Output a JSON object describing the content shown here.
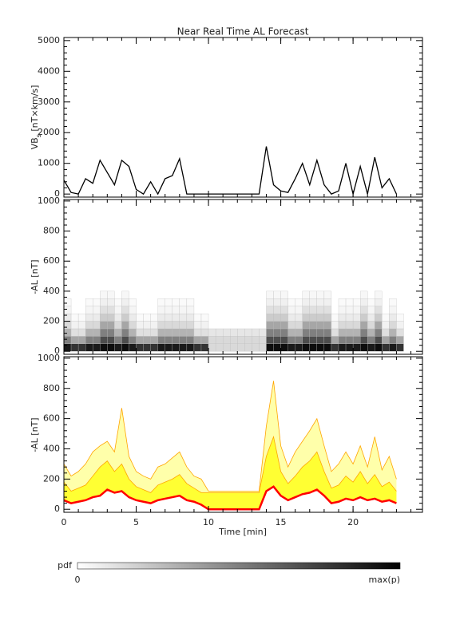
{
  "chart_data": [
    {
      "type": "line",
      "title": "Near Real Time AL Forecast",
      "ylabel": "VB",
      "ylabel_sub": "s",
      "ylabel_unit": " [nT×km/s]",
      "x": [
        0,
        0.5,
        1,
        1.5,
        2,
        2.5,
        3,
        3.5,
        4,
        4.5,
        5,
        5.5,
        6,
        6.5,
        7,
        7.5,
        8,
        8.5,
        9,
        9.5,
        10,
        10.5,
        11,
        11.5,
        12,
        12.5,
        13,
        13.5,
        14,
        14.5,
        15,
        15.5,
        16,
        16.5,
        17,
        17.5,
        18,
        18.5,
        19,
        19.5,
        20,
        20.5,
        21,
        21.5,
        22,
        22.5,
        23
      ],
      "values": [
        450,
        50,
        0,
        500,
        350,
        1100,
        700,
        300,
        1100,
        900,
        150,
        0,
        400,
        0,
        500,
        600,
        1150,
        0,
        0,
        0,
        0,
        0,
        0,
        0,
        0,
        0,
        0,
        0,
        1550,
        300,
        100,
        50,
        500,
        1000,
        300,
        1100,
        300,
        0,
        100,
        1000,
        0,
        900,
        0,
        1200,
        200,
        500,
        0
      ],
      "color": "#000000",
      "xlim": [
        0,
        24.8
      ],
      "xticks": [
        0,
        5,
        10,
        15,
        20
      ],
      "ylim": [
        -100,
        5100
      ],
      "yticks": [
        0,
        1000,
        2000,
        3000,
        4000,
        5000
      ]
    },
    {
      "type": "heatmap",
      "ylabel": "-AL [nT]",
      "x": [
        0,
        0.5,
        1,
        1.5,
        2,
        2.5,
        3,
        3.5,
        4,
        4.5,
        5,
        5.5,
        6,
        6.5,
        7,
        7.5,
        8,
        8.5,
        9,
        9.5,
        10,
        10.5,
        11,
        11.5,
        12,
        12.5,
        13,
        13.5,
        14,
        14.5,
        15,
        15.5,
        16,
        16.5,
        17,
        17.5,
        18,
        18.5,
        19,
        19.5,
        20,
        20.5,
        21,
        21.5,
        22,
        22.5,
        23
      ],
      "bins": [
        0,
        50,
        100,
        150,
        200,
        250,
        300,
        350,
        400
      ],
      "pdf": [
        [
          0.9,
          0.5,
          0.3,
          0.15,
          0.08,
          0.04,
          0.02,
          0
        ],
        [
          0.8,
          0.35,
          0.12,
          0.05,
          0.02,
          0,
          0,
          0
        ],
        [
          0.8,
          0.35,
          0.12,
          0.05,
          0.02,
          0,
          0,
          0
        ],
        [
          0.9,
          0.5,
          0.3,
          0.15,
          0.08,
          0.04,
          0.02,
          0
        ],
        [
          0.9,
          0.5,
          0.3,
          0.15,
          0.08,
          0.04,
          0.02,
          0
        ],
        [
          0.95,
          0.7,
          0.5,
          0.35,
          0.2,
          0.12,
          0.06,
          0.03
        ],
        [
          0.95,
          0.7,
          0.5,
          0.35,
          0.2,
          0.12,
          0.06,
          0.03
        ],
        [
          0.9,
          0.5,
          0.3,
          0.15,
          0.08,
          0.04,
          0.02,
          0
        ],
        [
          0.95,
          0.7,
          0.5,
          0.35,
          0.2,
          0.12,
          0.06,
          0.03
        ],
        [
          0.9,
          0.5,
          0.3,
          0.15,
          0.08,
          0.04,
          0.02,
          0
        ],
        [
          0.8,
          0.35,
          0.12,
          0.05,
          0.02,
          0,
          0,
          0
        ],
        [
          0.8,
          0.35,
          0.12,
          0.05,
          0.02,
          0,
          0,
          0
        ],
        [
          0.8,
          0.35,
          0.12,
          0.05,
          0.02,
          0,
          0,
          0
        ],
        [
          0.9,
          0.5,
          0.3,
          0.15,
          0.08,
          0.04,
          0.02,
          0
        ],
        [
          0.9,
          0.5,
          0.3,
          0.15,
          0.08,
          0.04,
          0.02,
          0
        ],
        [
          0.9,
          0.5,
          0.3,
          0.15,
          0.08,
          0.04,
          0.02,
          0
        ],
        [
          0.9,
          0.5,
          0.3,
          0.15,
          0.08,
          0.04,
          0.02,
          0
        ],
        [
          0.9,
          0.5,
          0.3,
          0.15,
          0.08,
          0.04,
          0.02,
          0
        ],
        [
          0.8,
          0.35,
          0.12,
          0.05,
          0.02,
          0,
          0,
          0
        ],
        [
          0.8,
          0.35,
          0.12,
          0.05,
          0.02,
          0,
          0,
          0
        ],
        [
          0.15,
          0.15,
          0.1,
          0,
          0,
          0,
          0,
          0
        ],
        [
          0.15,
          0.15,
          0.1,
          0,
          0,
          0,
          0,
          0
        ],
        [
          0.15,
          0.15,
          0.1,
          0,
          0,
          0,
          0,
          0
        ],
        [
          0.15,
          0.15,
          0.1,
          0,
          0,
          0,
          0,
          0
        ],
        [
          0.15,
          0.15,
          0.1,
          0,
          0,
          0,
          0,
          0
        ],
        [
          0.15,
          0.15,
          0.1,
          0,
          0,
          0,
          0,
          0
        ],
        [
          0.15,
          0.15,
          0.1,
          0,
          0,
          0,
          0,
          0
        ],
        [
          0.15,
          0.15,
          0.1,
          0,
          0,
          0,
          0,
          0
        ],
        [
          0.95,
          0.7,
          0.5,
          0.35,
          0.2,
          0.12,
          0.06,
          0.03
        ],
        [
          0.95,
          0.7,
          0.5,
          0.35,
          0.2,
          0.12,
          0.06,
          0.03
        ],
        [
          0.95,
          0.7,
          0.5,
          0.35,
          0.2,
          0.12,
          0.06,
          0.03
        ],
        [
          0.9,
          0.5,
          0.3,
          0.15,
          0.08,
          0.04,
          0.02,
          0
        ],
        [
          0.9,
          0.5,
          0.3,
          0.15,
          0.08,
          0.04,
          0.02,
          0
        ],
        [
          0.95,
          0.7,
          0.5,
          0.35,
          0.2,
          0.12,
          0.06,
          0.03
        ],
        [
          0.95,
          0.7,
          0.5,
          0.35,
          0.2,
          0.12,
          0.06,
          0.03
        ],
        [
          0.95,
          0.7,
          0.5,
          0.35,
          0.2,
          0.12,
          0.06,
          0.03
        ],
        [
          0.95,
          0.7,
          0.5,
          0.35,
          0.2,
          0.12,
          0.06,
          0.03
        ],
        [
          0.8,
          0.35,
          0.12,
          0.05,
          0.02,
          0,
          0,
          0
        ],
        [
          0.9,
          0.5,
          0.3,
          0.15,
          0.08,
          0.04,
          0.02,
          0
        ],
        [
          0.9,
          0.5,
          0.3,
          0.15,
          0.08,
          0.04,
          0.02,
          0
        ],
        [
          0.9,
          0.5,
          0.3,
          0.15,
          0.08,
          0.04,
          0.02,
          0
        ],
        [
          0.95,
          0.7,
          0.5,
          0.35,
          0.2,
          0.12,
          0.06,
          0.03
        ],
        [
          0.9,
          0.5,
          0.3,
          0.15,
          0.08,
          0.04,
          0.02,
          0
        ],
        [
          0.95,
          0.7,
          0.5,
          0.35,
          0.2,
          0.12,
          0.06,
          0.03
        ],
        [
          0.8,
          0.35,
          0.12,
          0.05,
          0.02,
          0,
          0,
          0
        ],
        [
          0.9,
          0.5,
          0.3,
          0.15,
          0.08,
          0.04,
          0.02,
          0
        ],
        [
          0.8,
          0.35,
          0.12,
          0.05,
          0.02,
          0,
          0,
          0
        ]
      ],
      "xlim": [
        0,
        24.8
      ],
      "xticks": [
        0,
        5,
        10,
        15,
        20
      ],
      "ylim": [
        -20,
        1010
      ],
      "yticks": [
        0,
        200,
        400,
        600,
        800,
        1000
      ],
      "colorbar": {
        "label": "pdf",
        "min_label": "0",
        "max_label": "max(p)"
      }
    },
    {
      "type": "band",
      "ylabel": "-AL [nT]",
      "xlabel": "Time [min]",
      "x": [
        0,
        0.5,
        1,
        1.5,
        2,
        2.5,
        3,
        3.5,
        4,
        4.5,
        5,
        5.5,
        6,
        6.5,
        7,
        7.5,
        8,
        8.5,
        9,
        9.5,
        10,
        10.5,
        11,
        11.5,
        12,
        12.5,
        13,
        13.5,
        14,
        14.5,
        15,
        15.5,
        16,
        16.5,
        17,
        17.5,
        18,
        18.5,
        19,
        19.5,
        20,
        20.5,
        21,
        21.5,
        22,
        22.5,
        23
      ],
      "series": [
        {
          "color": "#ff0000",
          "values": [
            60,
            40,
            50,
            60,
            80,
            90,
            130,
            110,
            120,
            80,
            60,
            50,
            40,
            60,
            70,
            80,
            90,
            60,
            50,
            30,
            0,
            0,
            0,
            0,
            0,
            0,
            0,
            0,
            120,
            150,
            90,
            60,
            80,
            100,
            110,
            130,
            90,
            40,
            50,
            70,
            60,
            80,
            60,
            70,
            50,
            60,
            40
          ]
        },
        {
          "color": "#ffff33",
          "values": [
            180,
            120,
            140,
            160,
            220,
            280,
            320,
            250,
            300,
            200,
            150,
            130,
            110,
            160,
            180,
            200,
            230,
            170,
            140,
            110,
            110,
            110,
            110,
            110,
            110,
            110,
            110,
            110,
            350,
            480,
            250,
            170,
            220,
            280,
            320,
            380,
            250,
            140,
            160,
            220,
            180,
            250,
            170,
            230,
            150,
            180,
            120
          ]
        },
        {
          "color": "#ffffaa",
          "values": [
            300,
            220,
            250,
            300,
            380,
            420,
            450,
            380,
            670,
            350,
            250,
            220,
            200,
            280,
            300,
            340,
            380,
            280,
            220,
            200,
            120,
            120,
            120,
            120,
            120,
            120,
            120,
            120,
            550,
            850,
            420,
            280,
            380,
            450,
            520,
            600,
            420,
            250,
            300,
            380,
            300,
            420,
            280,
            480,
            260,
            350,
            200
          ]
        }
      ],
      "band_line_color": "#ffa500",
      "xlim": [
        0,
        24.8
      ],
      "xticks": [
        0,
        5,
        10,
        15,
        20
      ],
      "ylim": [
        -20,
        1010
      ],
      "yticks": [
        0,
        200,
        400,
        600,
        800,
        1000
      ]
    }
  ]
}
